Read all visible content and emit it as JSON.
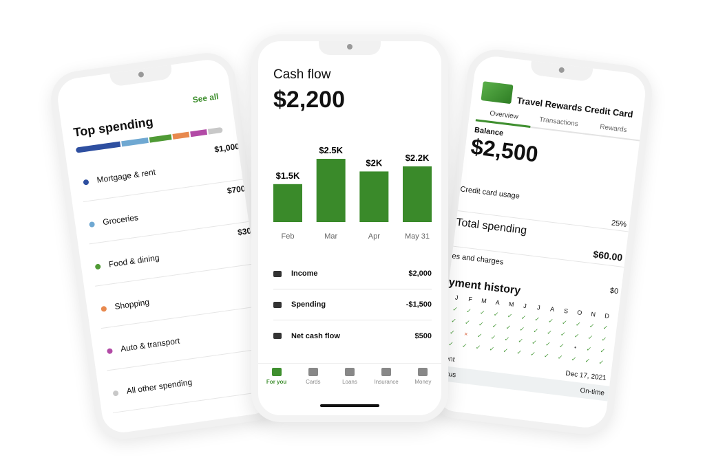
{
  "left_phone": {
    "title": "Top spending",
    "see_all": "See all",
    "categories": [
      {
        "name": "Mortgage & rent",
        "amount": "$1,000",
        "color": "#2e4fa0",
        "share": 0.3
      },
      {
        "name": "Groceries",
        "amount": "$700",
        "color": "#6fa8d2",
        "share": 0.18
      },
      {
        "name": "Food & dining",
        "amount": "$30",
        "color": "#4f9a35",
        "share": 0.15
      },
      {
        "name": "Shopping",
        "amount": "$",
        "color": "#e8894e",
        "share": 0.11
      },
      {
        "name": "Auto & transport",
        "amount": "",
        "color": "#b24aa6",
        "share": 0.11
      },
      {
        "name": "All other spending",
        "amount": "",
        "color": "#c8c8c8",
        "share": 0.1
      }
    ]
  },
  "center_phone": {
    "title": "Cash flow",
    "amount": "$2,200",
    "chart_data": {
      "type": "bar",
      "categories": [
        "Feb",
        "Mar",
        "Apr",
        "May 31"
      ],
      "values": [
        1.5,
        2.5,
        2.0,
        2.2
      ],
      "labels": [
        "$1.5K",
        "$2.5K",
        "$2K",
        "$2.2K"
      ],
      "unit": "$K",
      "color": "#3a8a2a"
    },
    "rows": [
      {
        "icon": "cash-icon",
        "label": "Income",
        "value": "$2,000"
      },
      {
        "icon": "wallet-icon",
        "label": "Spending",
        "value": "-$1,500"
      },
      {
        "icon": "net-cash-icon",
        "label": "Net cash flow",
        "value": "$500"
      }
    ],
    "nav": [
      {
        "icon": "document-icon",
        "label": "For you",
        "active": true
      },
      {
        "icon": "card-icon",
        "label": "Cards"
      },
      {
        "icon": "money-bag-icon",
        "label": "Loans"
      },
      {
        "icon": "shield-icon",
        "label": "Insurance"
      },
      {
        "icon": "money-icon",
        "label": "Money"
      }
    ]
  },
  "right_phone": {
    "title": "Travel Rewards Credit Card",
    "tabs": [
      "Overview",
      "Transactions",
      "Rewards"
    ],
    "balance_label": "Balance",
    "balance": "$2,500",
    "rows": [
      {
        "label": "Credit card usage",
        "value": "25%"
      },
      {
        "label": "Total spending",
        "value": "$60.00"
      },
      {
        "label": "es and charges",
        "value": "$0"
      }
    ],
    "payment_history_title": "yment history",
    "months": [
      "J",
      "F",
      "M",
      "A",
      "M",
      "J",
      "J",
      "A",
      "S",
      "O",
      "N",
      "D"
    ],
    "history": [
      [
        "ok",
        "ok",
        "ok",
        "ok",
        "ok",
        "ok",
        "ok",
        "ok",
        "ok",
        "ok",
        "ok",
        "ok"
      ],
      [
        "ok",
        "ok",
        "ok",
        "ok",
        "ok",
        "ok",
        "ok",
        "ok",
        "ok",
        "ok",
        "ok",
        "ok"
      ],
      [
        "ok",
        "late",
        "ok",
        "ok",
        "ok",
        "ok",
        "ok",
        "ok",
        "ok",
        "none",
        "ok",
        "ok"
      ],
      [
        "ok",
        "ok",
        "ok",
        "ok",
        "ok",
        "ok",
        "ok",
        "ok",
        "ok",
        "ok",
        "ok",
        "ok"
      ]
    ],
    "last_payment_label": "ment",
    "last_payment_date": "Dec 17, 2021",
    "status_label": "status",
    "status_value": "On-time"
  }
}
